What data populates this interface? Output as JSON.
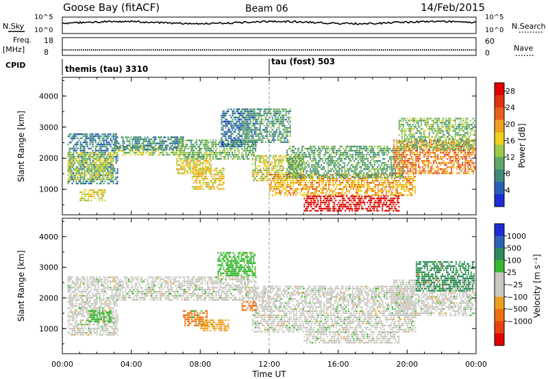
{
  "header": {
    "station": "Goose Bay (fitACF)",
    "beam": "Beam 06",
    "date": "14/Feb/2015"
  },
  "strip": {
    "nsky_label": "N.Sky",
    "nsky_ticks": [
      "10^5",
      "10^0"
    ],
    "nsearch_label": "N.Search",
    "nsearch_ticks": [
      "10^5",
      "10^0"
    ],
    "freq_label": "Freq.",
    "freq_unit": "[MHz]",
    "freq_ticks": [
      "18",
      "8"
    ],
    "nave_label": "Nave",
    "nave_ticks": [
      "60",
      "0"
    ],
    "cpid_label": "CPID",
    "cpid_segments": [
      {
        "label": "themis (tau) 3310",
        "start_hour": 0
      },
      {
        "label": "tau (fost) 503",
        "start_hour": 12
      }
    ]
  },
  "chart_data": [
    {
      "type": "heatmap",
      "name": "power",
      "ylabel": "Slant Range [km]",
      "xlabel": "Time UT",
      "xlim": [
        0,
        24
      ],
      "ylim": [
        180,
        4600
      ],
      "x_tick_labels": [
        "00:00",
        "04:00",
        "08:00",
        "12:00",
        "16:00",
        "20:00",
        "00:00"
      ],
      "y_ticks": [
        1000,
        2000,
        3000,
        4000
      ],
      "colorbar": {
        "label": "Power [dB]",
        "ticks": [
          4,
          8,
          12,
          16,
          20,
          24,
          28
        ],
        "range": [
          0,
          30
        ],
        "colors": [
          "#1d2cd8",
          "#2a5fb8",
          "#3f8a7a",
          "#5fa86a",
          "#9ccc4a",
          "#f0d020",
          "#f0a020",
          "#e86020",
          "#e03010",
          "#e00000"
        ]
      },
      "regions": [
        {
          "t0": 0.3,
          "t1": 3.2,
          "r0": 1200,
          "r1": 2800,
          "p": 7
        },
        {
          "t0": 0.3,
          "t1": 3.0,
          "r0": 1300,
          "r1": 2200,
          "p": 14
        },
        {
          "t0": 3.0,
          "t1": 7.0,
          "r0": 2100,
          "r1": 2400,
          "p": 13
        },
        {
          "t0": 3.0,
          "t1": 7.0,
          "r0": 2300,
          "r1": 2700,
          "p": 8
        },
        {
          "t0": 6.6,
          "t1": 8.6,
          "r0": 1500,
          "r1": 2200,
          "p": 16
        },
        {
          "t0": 7.5,
          "t1": 9.4,
          "r0": 1000,
          "r1": 1700,
          "p": 17
        },
        {
          "t0": 6.8,
          "t1": 11.2,
          "r0": 2000,
          "r1": 2600,
          "p": 11
        },
        {
          "t0": 9.2,
          "t1": 11.2,
          "r0": 2400,
          "r1": 3600,
          "p": 6
        },
        {
          "t0": 11.0,
          "t1": 14.0,
          "r0": 1300,
          "r1": 2100,
          "p": 15
        },
        {
          "t0": 12.0,
          "t1": 20.5,
          "r0": 800,
          "r1": 1500,
          "p": 19
        },
        {
          "t0": 13.0,
          "t1": 19.8,
          "r0": 1400,
          "r1": 2400,
          "p": 10
        },
        {
          "t0": 14.0,
          "t1": 19.5,
          "r0": 300,
          "r1": 800,
          "p": 29
        },
        {
          "t0": 19.2,
          "t1": 23.9,
          "r0": 1500,
          "r1": 2600,
          "p": 21
        },
        {
          "t0": 19.5,
          "t1": 23.9,
          "r0": 2300,
          "r1": 3300,
          "p": 12
        },
        {
          "t0": 1.0,
          "t1": 2.5,
          "r0": 650,
          "r1": 1000,
          "p": 16
        },
        {
          "t0": 10.4,
          "t1": 13.2,
          "r0": 2500,
          "r1": 3600,
          "p": 9
        }
      ]
    },
    {
      "type": "heatmap",
      "name": "velocity",
      "ylabel": "Slant Range [km]",
      "xlabel": "Time UT",
      "xlim": [
        0,
        24
      ],
      "ylim": [
        180,
        4600
      ],
      "x_tick_labels": [
        "00:00",
        "04:00",
        "08:00",
        "12:00",
        "16:00",
        "20:00",
        "00:00"
      ],
      "y_ticks": [
        1000,
        2000,
        3000,
        4000
      ],
      "colorbar": {
        "label": "Velocity [m s⁻¹]",
        "ticks": [
          "1000",
          "500",
          "100",
          "25",
          "−25",
          "−100",
          "−500",
          "−1000"
        ],
        "colors": [
          "#1d2cd8",
          "#2d62b8",
          "#2e8a5a",
          "#38b830",
          "#c8c8c0",
          "#c8c8c0",
          "#f0a020",
          "#f07010",
          "#e84010",
          "#e00000"
        ]
      },
      "regions": [
        {
          "t0": 0.3,
          "t1": 3.2,
          "r0": 800,
          "r1": 2700,
          "v": 0
        },
        {
          "t0": 3.0,
          "t1": 11.2,
          "r0": 1900,
          "r1": 2700,
          "v": 0
        },
        {
          "t0": 7.0,
          "t1": 8.4,
          "r0": 1100,
          "r1": 1600,
          "v": -150
        },
        {
          "t0": 8.0,
          "t1": 9.6,
          "r0": 900,
          "r1": 1300,
          "v": -80
        },
        {
          "t0": 9.0,
          "t1": 11.2,
          "r0": 2700,
          "r1": 3500,
          "v": 80
        },
        {
          "t0": 11.0,
          "t1": 20.5,
          "r0": 900,
          "r1": 2400,
          "v": 0
        },
        {
          "t0": 14.0,
          "t1": 19.5,
          "r0": 500,
          "r1": 900,
          "v": 0
        },
        {
          "t0": 19.2,
          "t1": 23.9,
          "r0": 1400,
          "r1": 2600,
          "v": 0
        },
        {
          "t0": 20.5,
          "t1": 23.9,
          "r0": 2200,
          "r1": 3200,
          "v": 150
        },
        {
          "t0": 1.5,
          "t1": 2.8,
          "r0": 1200,
          "r1": 1600,
          "v": 60
        },
        {
          "t0": 10.4,
          "t1": 11.2,
          "r0": 1600,
          "r1": 1900,
          "v": -100
        }
      ]
    }
  ]
}
